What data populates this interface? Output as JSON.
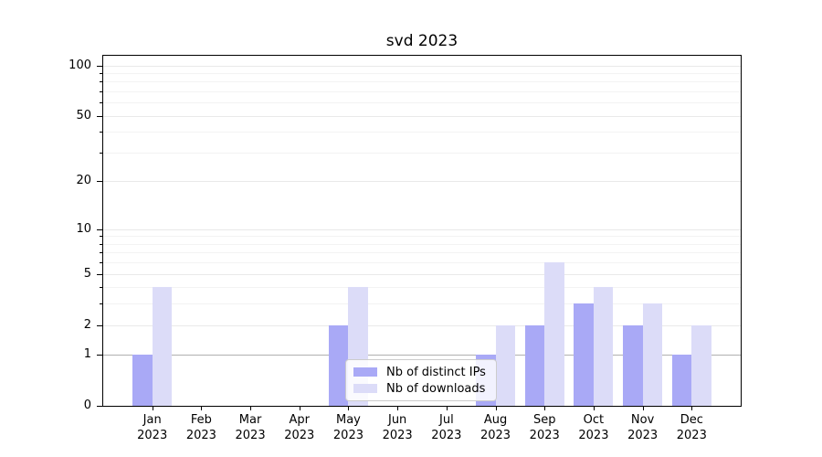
{
  "chart_data": {
    "type": "bar",
    "title": "svd 2023",
    "categories": [
      "Jan",
      "Feb",
      "Mar",
      "Apr",
      "May",
      "Jun",
      "Jul",
      "Aug",
      "Sep",
      "Oct",
      "Nov",
      "Dec"
    ],
    "x_tick_second_line": "2023",
    "series": [
      {
        "name": "Nb of distinct IPs",
        "key": "distinct-ips",
        "color": "#a9a9f6",
        "values": [
          1,
          0,
          0,
          0,
          2,
          0,
          0,
          1,
          2,
          3,
          2,
          1
        ]
      },
      {
        "name": "Nb of downloads",
        "key": "downloads",
        "color": "#dcdcf8",
        "values": [
          4,
          0,
          0,
          0,
          4,
          0,
          0,
          2,
          6,
          4,
          3,
          2
        ]
      }
    ],
    "y_axis": {
      "scale": "log1p",
      "tick_values": [
        0,
        1,
        2,
        5,
        10,
        20,
        50,
        100
      ],
      "tick_labels": [
        "0",
        "1",
        "2",
        "5",
        "10",
        "20",
        "50",
        "100"
      ],
      "minor_tick_values": [
        3,
        4,
        6,
        7,
        8,
        9,
        30,
        40,
        60,
        70,
        80,
        90
      ],
      "max": 115,
      "emphasized_gridline_value": 1
    },
    "legend": {
      "entries": [
        "Nb of distinct IPs",
        "Nb of downloads"
      ],
      "position": "lower center"
    },
    "grid": true,
    "colors": {
      "background": "#ffffff",
      "grid_major": "#e9e9e9",
      "grid_minor": "#f3f3f3",
      "grid_emphasized": "#b0b0b0",
      "spine": "#000000",
      "text": "#000000",
      "legend_border": "#cccccc"
    }
  }
}
